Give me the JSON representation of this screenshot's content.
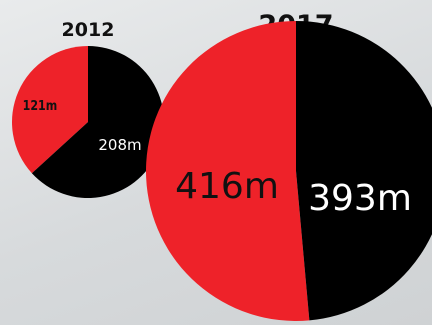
{
  "colors": {
    "red": "#ee2229",
    "black": "#000000"
  },
  "chart_data": [
    {
      "type": "pie",
      "title": "2012",
      "slices": [
        {
          "label": "121m",
          "value": 121,
          "color": "#ee2229"
        },
        {
          "label": "208m",
          "value": 208,
          "color": "#000000"
        }
      ]
    },
    {
      "type": "pie",
      "title": "2017",
      "slices": [
        {
          "label": "416m",
          "value": 416,
          "color": "#ee2229"
        },
        {
          "label": "393m",
          "value": 393,
          "color": "#000000"
        }
      ]
    }
  ]
}
